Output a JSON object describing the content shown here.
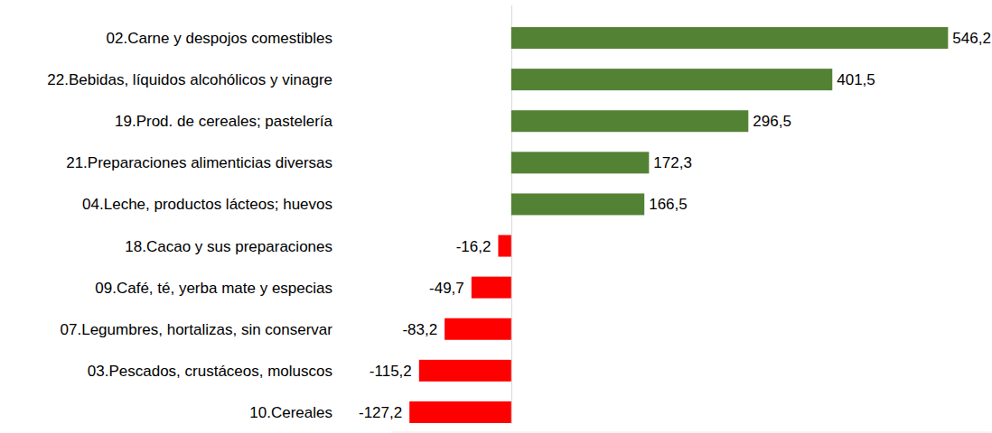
{
  "chart_data": {
    "type": "bar",
    "orientation": "horizontal",
    "categories": [
      "02.Carne y despojos comestibles",
      "22.Bebidas, líquidos alcohólicos y vinagre",
      "19.Prod. de cereales; pastelería",
      "21.Preparaciones alimenticias diversas",
      "04.Leche, productos lácteos; huevos",
      "18.Cacao y sus preparaciones",
      "09.Café, té, yerba mate y especias",
      "07.Legumbres, hortalizas, sin conservar",
      "03.Pescados, crustáceos, moluscos",
      "10.Cereales"
    ],
    "values": [
      546.2,
      401.5,
      296.5,
      172.3,
      166.5,
      -16.2,
      -49.7,
      -83.2,
      -115.2,
      -127.2
    ],
    "value_labels": [
      "546,2",
      "401,5",
      "296,5",
      "172,3",
      "166,5",
      "-16,2",
      "-49,7",
      "-83,2",
      "-115,2",
      "-127,2"
    ],
    "colors": [
      "#548235",
      "#548235",
      "#548235",
      "#548235",
      "#548235",
      "#ff0000",
      "#ff0000",
      "#ff0000",
      "#ff0000",
      "#ff0000"
    ],
    "xlim": [
      -150,
      600
    ],
    "xticks": [
      0
    ],
    "data_labels": true,
    "tick_labels": "y",
    "grid": false
  }
}
